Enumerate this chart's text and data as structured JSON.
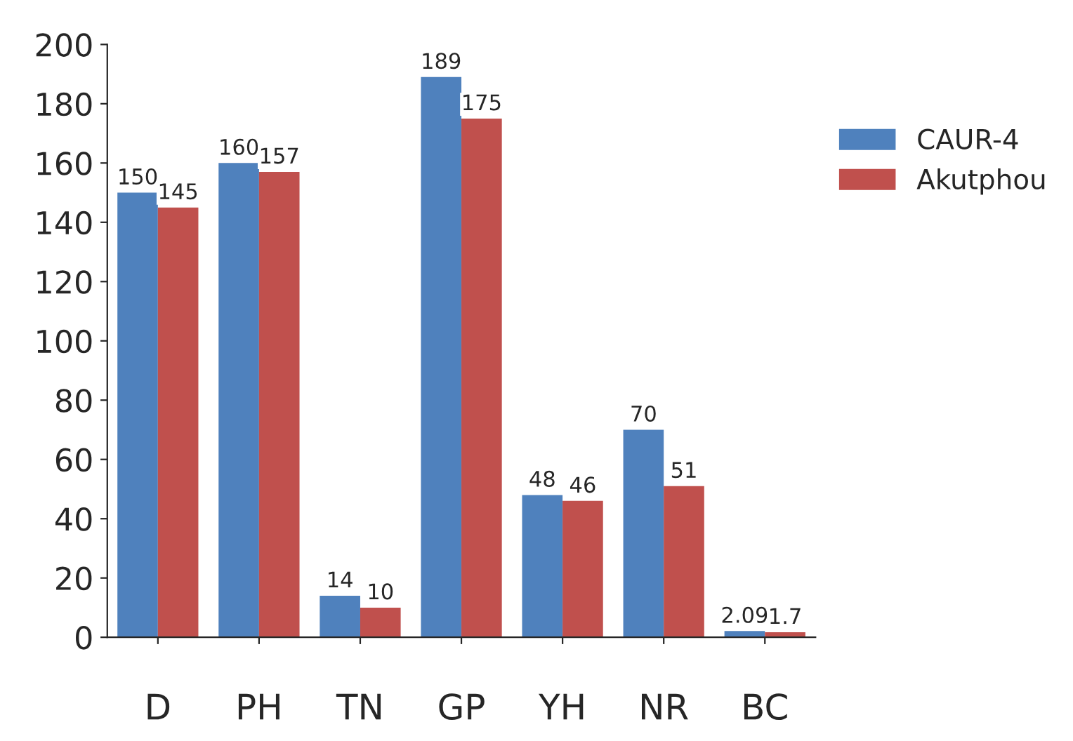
{
  "chart_data": {
    "type": "bar",
    "categories": [
      "D",
      "PH",
      "TN",
      "GP",
      "YH",
      "NR",
      "BC"
    ],
    "series": [
      {
        "name": "CAUR-4",
        "color": "#4f81bd",
        "values": [
          150,
          160,
          14,
          189,
          48,
          70,
          2.09
        ]
      },
      {
        "name": "Akutphou",
        "color": "#c0504d",
        "values": [
          145,
          157,
          10,
          175,
          46,
          51,
          1.7
        ]
      }
    ],
    "ylim": [
      0,
      200
    ],
    "yticks": [
      0,
      20,
      40,
      60,
      80,
      100,
      120,
      140,
      160,
      180,
      200
    ],
    "data_labels": true,
    "legend": "top right",
    "grid": false
  }
}
